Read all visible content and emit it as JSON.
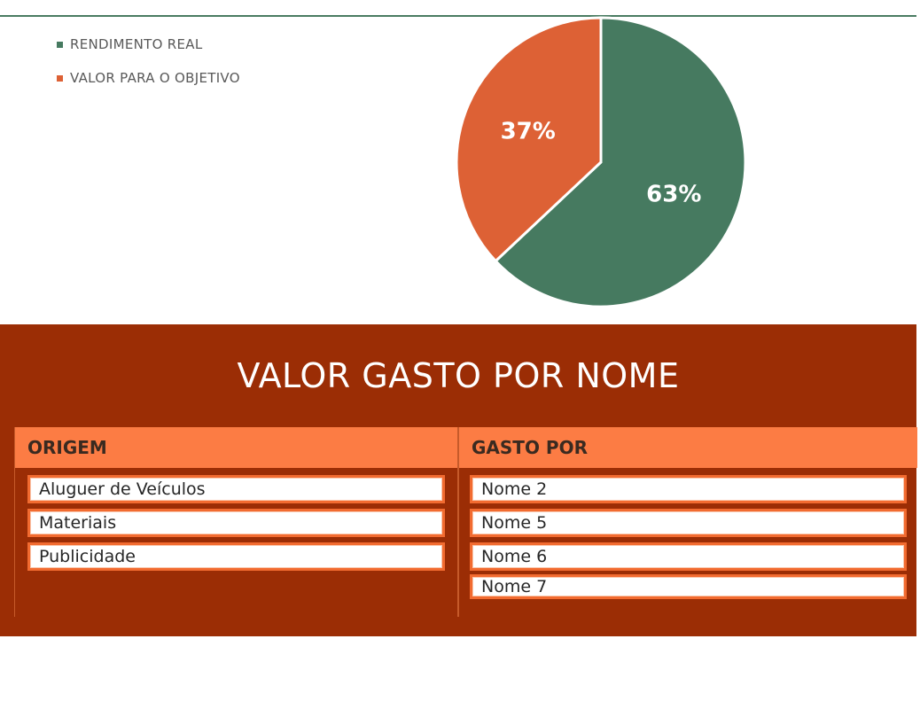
{
  "chart_data": {
    "type": "pie",
    "categories": [
      "RENDIMENTO REAL",
      "VALOR PARA O OBJETIVO"
    ],
    "values": [
      63,
      37
    ],
    "labels": [
      "63%",
      "37%"
    ],
    "colors": [
      "#467a60",
      "#dd6135"
    ],
    "legend": "top-left"
  },
  "legend": {
    "items": [
      {
        "label": "RENDIMENTO REAL",
        "color": "#467a60"
      },
      {
        "label": "VALOR PARA O OBJETIVO",
        "color": "#dd6135"
      }
    ]
  },
  "panel": {
    "title": "VALOR GASTO POR NOME",
    "background": "#9b2d05"
  },
  "slicers": {
    "origem": {
      "header": "ORIGEM",
      "items": [
        "Aluguer de Veículos",
        "Materiais",
        "Publicidade"
      ]
    },
    "gasto_por": {
      "header": "GASTO POR",
      "items": [
        "Nome 2",
        "Nome 5",
        "Nome 6",
        "Nome 7"
      ]
    }
  }
}
